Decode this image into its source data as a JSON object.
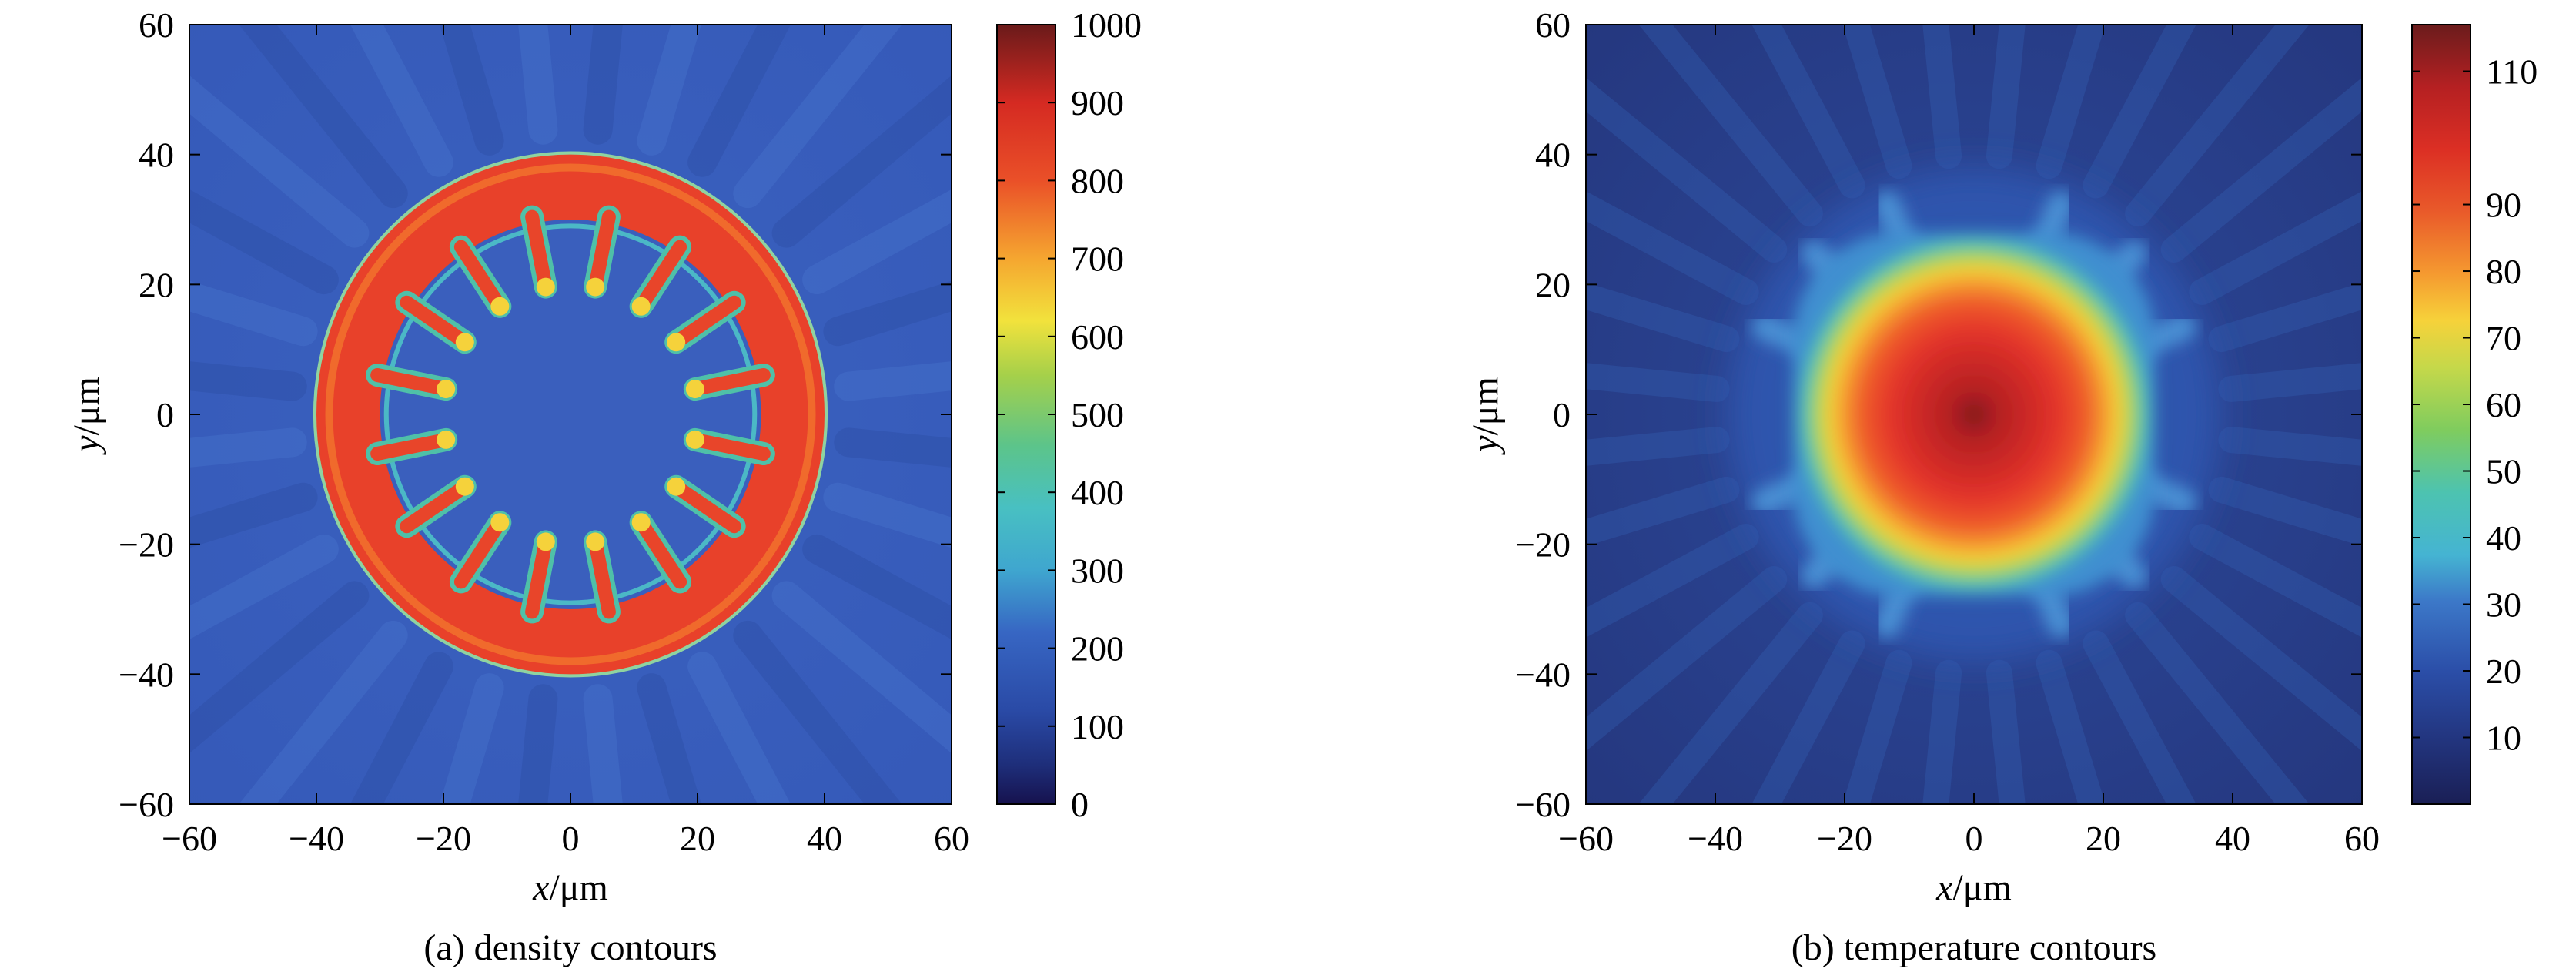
{
  "panels": [
    {
      "caption": "(a) density contours",
      "xlabel_var": "x",
      "xlabel_unit": "/μm",
      "ylabel_var": "y",
      "ylabel_unit": "/μm",
      "xticks": [
        "−60",
        "−40",
        "−20",
        "0",
        "20",
        "40",
        "60"
      ],
      "yticks": [
        "60",
        "40",
        "20",
        "0",
        "−20",
        "−40",
        "−60"
      ],
      "colorbar_ticks": [
        "1000",
        "900",
        "800",
        "700",
        "600",
        "500",
        "400",
        "300",
        "200",
        "100",
        "0"
      ]
    },
    {
      "caption": "(b) temperature contours",
      "xlabel_var": "x",
      "xlabel_unit": "/μm",
      "ylabel_var": "y",
      "ylabel_unit": "/μm",
      "xticks": [
        "−60",
        "−40",
        "−20",
        "0",
        "20",
        "40",
        "60"
      ],
      "yticks": [
        "60",
        "40",
        "20",
        "0",
        "−20",
        "−40",
        "−60"
      ],
      "colorbar_ticks": [
        "110",
        "90",
        "80",
        "70",
        "60",
        "50",
        "40",
        "30",
        "20",
        "10"
      ]
    }
  ],
  "chart_data": [
    {
      "type": "heatmap",
      "title": "(a) density contours",
      "xlabel": "x/μm",
      "ylabel": "y/μm",
      "xlim": [
        -60,
        60
      ],
      "ylim": [
        -60,
        60
      ],
      "colorbar": {
        "min": 0,
        "max": 1000,
        "ticks": [
          0,
          100,
          200,
          300,
          400,
          500,
          600,
          700,
          800,
          900,
          1000
        ]
      },
      "colormap": "jet",
      "features": {
        "shell_outer_radius": 40,
        "shell_inner_radius": 30,
        "finger_count": 16,
        "background_value": 180,
        "interior_value": 120
      }
    },
    {
      "type": "heatmap",
      "title": "(b) temperature contours",
      "xlabel": "x/μm",
      "ylabel": "y/μm",
      "xlim": [
        -60,
        60
      ],
      "ylim": [
        -60,
        60
      ],
      "colorbar": {
        "min": 0,
        "max": 117,
        "ticks": [
          10,
          20,
          30,
          40,
          50,
          60,
          70,
          80,
          90,
          110
        ]
      },
      "colormap": "jet",
      "features": {
        "hot_core_value": 117,
        "hot_core_half_width": 18,
        "finger_count": 16,
        "background_value": 5
      }
    }
  ]
}
